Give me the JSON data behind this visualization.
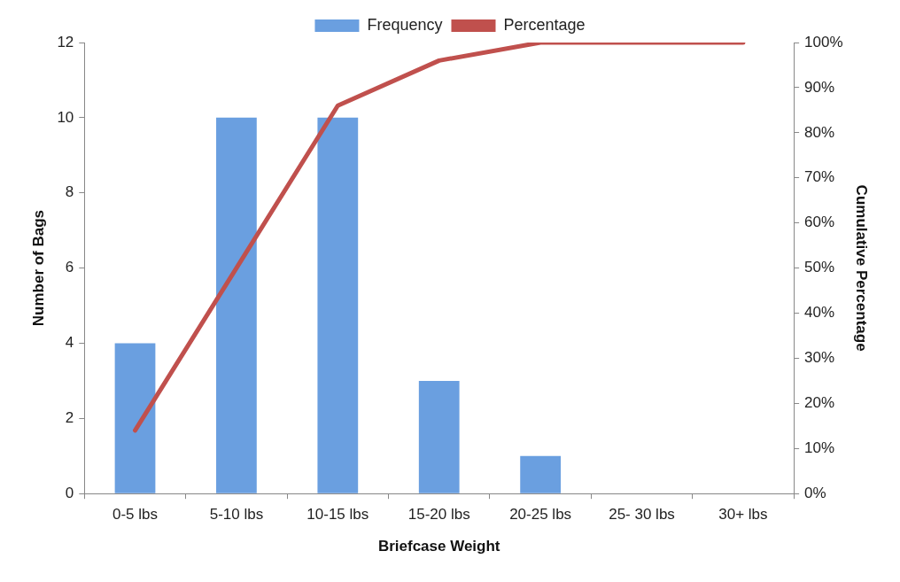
{
  "chart_data": {
    "type": "bar",
    "xlabel": "Briefcase Weight",
    "ylabel": "Number of Bags",
    "y2label": "Cumulative Percentage",
    "categories": [
      "0-5 lbs",
      "5-10 lbs",
      "10-15 lbs",
      "15-20 lbs",
      "20-25 lbs",
      "25- 30 lbs",
      "30+ lbs"
    ],
    "series": [
      {
        "name": "Frequency",
        "color": "#6a9fe0",
        "values": [
          4,
          10,
          10,
          3,
          1,
          0,
          0
        ]
      },
      {
        "name": "Percentage",
        "type": "line",
        "axis": "y2",
        "color": "#c0504d",
        "values": [
          14,
          50,
          86,
          96,
          100,
          100,
          100
        ]
      }
    ],
    "ylim": [
      0,
      12
    ],
    "yticks": [
      0,
      2,
      4,
      6,
      8,
      10,
      12
    ],
    "y2lim": [
      0,
      100
    ],
    "y2ticks": [
      {
        "value": 0,
        "label": "0%"
      },
      {
        "value": 10,
        "label": "10%"
      },
      {
        "value": 20,
        "label": "20%"
      },
      {
        "value": 30,
        "label": "30%"
      },
      {
        "value": 40,
        "label": "40%"
      },
      {
        "value": 50,
        "label": "50%"
      },
      {
        "value": 60,
        "label": "60%"
      },
      {
        "value": 70,
        "label": "70%"
      },
      {
        "value": 80,
        "label": "80%"
      },
      {
        "value": 90,
        "label": "90%"
      },
      {
        "value": 100,
        "label": "100%"
      }
    ],
    "legend": "top",
    "grid": false,
    "marker": "none",
    "line_style": "solid"
  }
}
